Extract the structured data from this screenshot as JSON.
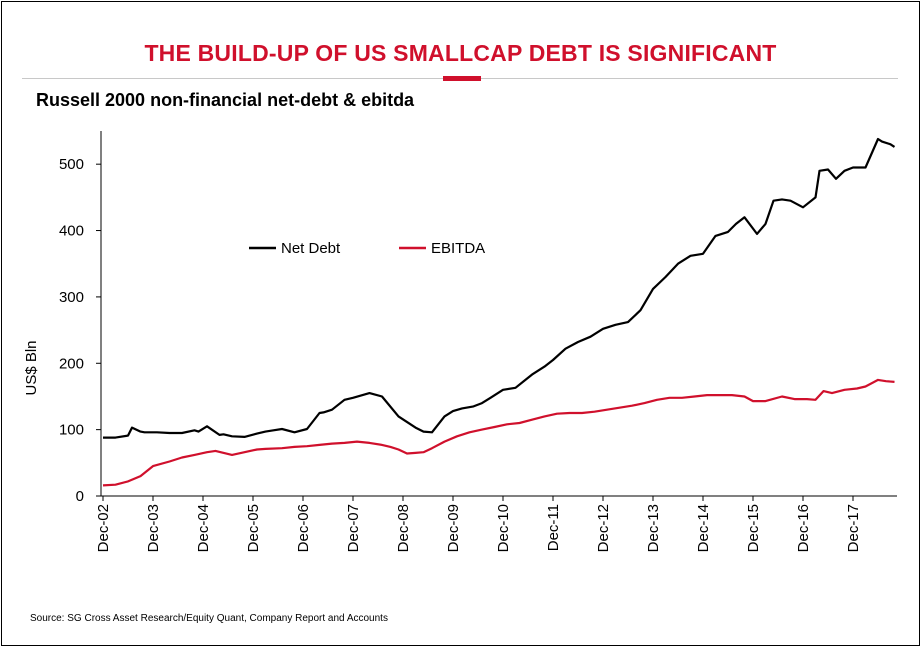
{
  "header": {
    "title": "THE BUILD-UP OF US SMALLCAP DEBT IS SIGNIFICANT",
    "subtitle": "Russell 2000 non-financial net-debt & ebitda"
  },
  "footer": {
    "source": "Source: SG Cross Asset Research/Equity Quant, Company Report and Accounts"
  },
  "colors": {
    "title": "#d0102c",
    "net_debt": "#000000",
    "ebitda": "#d0102c"
  },
  "chart_data": {
    "type": "line",
    "title": "Russell 2000 non-financial net-debt & ebitda",
    "xlabel": "",
    "ylabel": "US$ Bln",
    "ylim": [
      0,
      550
    ],
    "yticks": [
      0,
      100,
      200,
      300,
      400,
      500
    ],
    "xlim": [
      2002.92,
      2018.75
    ],
    "xticks": [
      "Dec-02",
      "Dec-03",
      "Dec-04",
      "Dec-05",
      "Dec-06",
      "Dec-07",
      "Dec-08",
      "Dec-09",
      "Dec-10",
      "Dec-11",
      "Dec-12",
      "Dec-13",
      "Dec-14",
      "Dec-15",
      "Dec-16",
      "Dec-17"
    ],
    "grid": false,
    "legend": "upper-left, horizontal",
    "series": [
      {
        "name": "Net Debt",
        "color": "#000000",
        "x": [
          2002.92,
          2003.17,
          2003.42,
          2003.5,
          2003.67,
          2003.75,
          2004.0,
          2004.25,
          2004.5,
          2004.75,
          2004.83,
          2005.0,
          2005.25,
          2005.33,
          2005.5,
          2005.75,
          2006.0,
          2006.17,
          2006.33,
          2006.5,
          2006.75,
          2007.0,
          2007.25,
          2007.33,
          2007.5,
          2007.75,
          2007.92,
          2008.25,
          2008.5,
          2008.83,
          2009.17,
          2009.33,
          2009.5,
          2009.75,
          2009.92,
          2010.1,
          2010.33,
          2010.5,
          2010.67,
          2010.92,
          2011.17,
          2011.5,
          2011.75,
          2011.92,
          2012.17,
          2012.42,
          2012.67,
          2012.92,
          2013.17,
          2013.42,
          2013.67,
          2013.92,
          2014.17,
          2014.42,
          2014.67,
          2014.92,
          2015.17,
          2015.42,
          2015.58,
          2015.75,
          2016.0,
          2016.17,
          2016.33,
          2016.5,
          2016.67,
          2016.92,
          2017.17,
          2017.25,
          2017.42,
          2017.58,
          2017.75,
          2017.92,
          2018.17,
          2018.42,
          2018.5,
          2018.67,
          2018.75
        ],
        "values": [
          88,
          88,
          91,
          103,
          97,
          96,
          96,
          95,
          95,
          99,
          97,
          105,
          92,
          93,
          90,
          89,
          94,
          97,
          99,
          101,
          96,
          101,
          125,
          126,
          130,
          145,
          148,
          155,
          150,
          120,
          103,
          97,
          96,
          120,
          128,
          132,
          135,
          140,
          148,
          160,
          163,
          183,
          195,
          205,
          222,
          232,
          240,
          252,
          258,
          262,
          280,
          312,
          330,
          350,
          362,
          365,
          392,
          398,
          410,
          420,
          395,
          410,
          445,
          447,
          445,
          435,
          450,
          490,
          492,
          478,
          490,
          495,
          495,
          538,
          534,
          530,
          526
        ]
      },
      {
        "name": "EBITDA",
        "color": "#d0102c",
        "x": [
          2002.92,
          2003.17,
          2003.42,
          2003.67,
          2003.92,
          2004.25,
          2004.5,
          2004.75,
          2005.0,
          2005.17,
          2005.5,
          2005.75,
          2006.0,
          2006.17,
          2006.5,
          2006.75,
          2007.0,
          2007.25,
          2007.5,
          2007.75,
          2008.0,
          2008.25,
          2008.5,
          2008.67,
          2008.83,
          2009.0,
          2009.17,
          2009.33,
          2009.5,
          2009.75,
          2010.0,
          2010.25,
          2010.5,
          2010.75,
          2011.0,
          2011.25,
          2011.5,
          2011.75,
          2012.0,
          2012.25,
          2012.5,
          2012.75,
          2013.0,
          2013.25,
          2013.5,
          2013.75,
          2014.0,
          2014.25,
          2014.5,
          2014.75,
          2015.0,
          2015.25,
          2015.5,
          2015.75,
          2015.92,
          2016.17,
          2016.5,
          2016.75,
          2017.0,
          2017.17,
          2017.33,
          2017.5,
          2017.75,
          2018.0,
          2018.17,
          2018.42,
          2018.58,
          2018.75
        ],
        "values": [
          16,
          17,
          22,
          30,
          45,
          52,
          58,
          62,
          66,
          68,
          62,
          66,
          70,
          71,
          72,
          74,
          75,
          77,
          79,
          80,
          82,
          80,
          77,
          74,
          70,
          64,
          65,
          66,
          72,
          82,
          90,
          96,
          100,
          104,
          108,
          110,
          115,
          120,
          124,
          125,
          125,
          127,
          130,
          133,
          136,
          140,
          145,
          148,
          148,
          150,
          152,
          152,
          152,
          150,
          143,
          143,
          150,
          146,
          146,
          145,
          158,
          155,
          160,
          162,
          165,
          175,
          173,
          172
        ]
      }
    ]
  }
}
